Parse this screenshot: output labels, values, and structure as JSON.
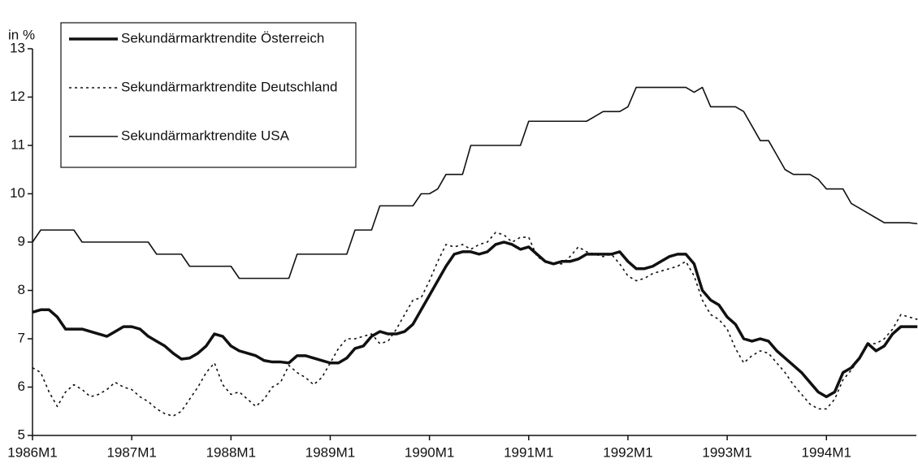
{
  "chart_data": {
    "type": "line",
    "y_label": "in %",
    "categories": [
      "1986M1",
      null,
      null,
      null,
      null,
      null,
      null,
      null,
      null,
      null,
      null,
      null,
      "1987M1",
      null,
      null,
      null,
      null,
      null,
      null,
      null,
      null,
      null,
      null,
      null,
      "1988M1",
      null,
      null,
      null,
      null,
      null,
      null,
      null,
      null,
      null,
      null,
      null,
      "1989M1",
      null,
      null,
      null,
      null,
      null,
      null,
      null,
      null,
      null,
      null,
      null,
      "1990M1",
      null,
      null,
      null,
      null,
      null,
      null,
      null,
      null,
      null,
      null,
      null,
      "1991M1",
      null,
      null,
      null,
      null,
      null,
      null,
      null,
      null,
      null,
      null,
      null,
      "1992M1",
      null,
      null,
      null,
      null,
      null,
      null,
      null,
      null,
      null,
      null,
      null,
      "1993M1",
      null,
      null,
      null,
      null,
      null,
      null,
      null,
      null,
      null,
      null,
      null,
      "1994M1",
      null,
      null,
      null,
      null,
      null,
      null,
      null,
      null,
      null,
      null,
      null
    ],
    "series": [
      {
        "name": "Sekundärmarktrendite Österreich",
        "color": "#111",
        "style": "thick",
        "values": [
          7.55,
          7.6,
          7.6,
          7.45,
          7.2,
          7.2,
          7.2,
          7.15,
          7.1,
          7.05,
          7.15,
          7.25,
          7.25,
          7.2,
          7.05,
          6.95,
          6.85,
          6.7,
          6.58,
          6.6,
          6.7,
          6.85,
          7.1,
          7.05,
          6.85,
          6.75,
          6.7,
          6.65,
          6.55,
          6.52,
          6.52,
          6.5,
          6.65,
          6.65,
          6.6,
          6.55,
          6.5,
          6.5,
          6.6,
          6.8,
          6.85,
          7.05,
          7.15,
          7.1,
          7.1,
          7.15,
          7.3,
          7.6,
          7.9,
          8.2,
          8.5,
          8.75,
          8.8,
          8.8,
          8.75,
          8.8,
          8.95,
          9.0,
          8.95,
          8.85,
          8.9,
          8.75,
          8.6,
          8.55,
          8.6,
          8.6,
          8.65,
          8.75,
          8.75,
          8.75,
          8.75,
          8.8,
          8.6,
          8.45,
          8.45,
          8.5,
          8.6,
          8.7,
          8.75,
          8.75,
          8.55,
          8.0,
          7.8,
          7.7,
          7.45,
          7.3,
          7.0,
          6.95,
          7.0,
          6.95,
          6.75,
          6.6,
          6.45,
          6.3,
          6.1,
          5.9,
          5.8,
          5.9,
          6.3,
          6.4,
          6.6,
          6.9,
          6.75,
          6.85,
          7.1,
          7.25,
          7.25,
          7.25
        ]
      },
      {
        "name": "Sekundärmarktrendite Deutschland",
        "color": "#111",
        "style": "dotted",
        "values": [
          6.4,
          6.3,
          5.9,
          5.6,
          5.9,
          6.05,
          5.95,
          5.8,
          5.85,
          5.95,
          6.1,
          6.0,
          5.95,
          5.8,
          5.7,
          5.55,
          5.45,
          5.4,
          5.5,
          5.75,
          6.0,
          6.3,
          6.5,
          6.05,
          5.85,
          5.9,
          5.75,
          5.6,
          5.75,
          6.0,
          6.1,
          6.45,
          6.3,
          6.2,
          6.05,
          6.2,
          6.5,
          6.8,
          7.0,
          7.0,
          7.05,
          7.1,
          6.9,
          6.95,
          7.2,
          7.5,
          7.8,
          7.85,
          8.2,
          8.6,
          8.95,
          8.9,
          8.95,
          8.85,
          8.95,
          9.0,
          9.2,
          9.15,
          9.0,
          9.1,
          9.1,
          8.7,
          8.6,
          8.55,
          8.55,
          8.7,
          8.9,
          8.8,
          8.75,
          8.7,
          8.75,
          8.55,
          8.3,
          8.2,
          8.25,
          8.35,
          8.4,
          8.45,
          8.5,
          8.6,
          8.3,
          7.8,
          7.5,
          7.4,
          7.2,
          6.8,
          6.5,
          6.65,
          6.75,
          6.7,
          6.5,
          6.3,
          6.05,
          5.85,
          5.65,
          5.55,
          5.55,
          5.75,
          6.15,
          6.35,
          6.6,
          6.9,
          6.9,
          7.0,
          7.2,
          7.5,
          7.45,
          7.4
        ]
      },
      {
        "name": "Sekundärmarktrendite USA",
        "color": "#111",
        "style": "thin",
        "values": [
          9.0,
          9.25,
          9.25,
          9.25,
          9.25,
          9.25,
          9.0,
          9.0,
          9.0,
          9.0,
          9.0,
          9.0,
          9.0,
          9.0,
          9.0,
          8.75,
          8.75,
          8.75,
          8.75,
          8.5,
          8.5,
          8.5,
          8.5,
          8.5,
          8.5,
          8.25,
          8.25,
          8.25,
          8.25,
          8.25,
          8.25,
          8.25,
          8.75,
          8.75,
          8.75,
          8.75,
          8.75,
          8.75,
          8.75,
          9.25,
          9.25,
          9.25,
          9.75,
          9.75,
          9.75,
          9.75,
          9.75,
          10.0,
          10.0,
          10.1,
          10.4,
          10.4,
          10.4,
          11.0,
          11.0,
          11.0,
          11.0,
          11.0,
          11.0,
          11.0,
          11.5,
          11.5,
          11.5,
          11.5,
          11.5,
          11.5,
          11.5,
          11.5,
          11.6,
          11.7,
          11.7,
          11.7,
          11.8,
          12.2,
          12.2,
          12.2,
          12.2,
          12.2,
          12.2,
          12.2,
          12.1,
          12.2,
          11.8,
          11.8,
          11.8,
          11.8,
          11.7,
          11.4,
          11.1,
          11.1,
          10.8,
          10.5,
          10.4,
          10.4,
          10.4,
          10.3,
          10.1,
          10.1,
          10.1,
          9.8,
          9.7,
          9.6,
          9.5,
          9.4,
          9.4,
          9.4,
          9.4,
          9.38
        ]
      }
    ],
    "ylim": [
      5,
      13
    ],
    "yticks": [
      5,
      6,
      7,
      8,
      9,
      10,
      11,
      12,
      13
    ],
    "legend": "upper left"
  }
}
